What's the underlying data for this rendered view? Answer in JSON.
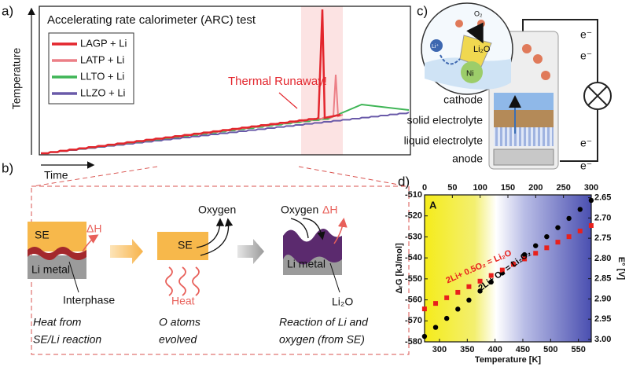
{
  "panel_a": {
    "label": "a)",
    "title": "Accelerating rate calorimeter (ARC) test",
    "y_label": "Temperature",
    "x_label": "Time",
    "legend": [
      {
        "name": "LAGP + Li",
        "color": "#e3262d"
      },
      {
        "name": "LATP + Li",
        "color": "#ec7f86"
      },
      {
        "name": "LLTO + Li",
        "color": "#3fb556"
      },
      {
        "name": "LLZO + Li",
        "color": "#6a5aa9"
      }
    ],
    "annotation": "Thermal Runaway!"
  },
  "panel_b": {
    "label": "b)",
    "step1": {
      "se": "SE",
      "heat": "ΔH",
      "metal": "Li metal",
      "interphase": "Interphase",
      "caption": [
        "Heat from",
        "SE/Li reaction"
      ]
    },
    "step2": {
      "se": "SE",
      "gas": "Oxygen",
      "heat": "Heat",
      "caption": [
        "O atoms",
        "evolved"
      ]
    },
    "step3": {
      "gas": "Oxygen",
      "heat": "ΔH",
      "metal": "Li metal",
      "product": "Li₂O",
      "caption": [
        "Reaction of Li and",
        "oxygen (from SE)"
      ]
    }
  },
  "panel_c": {
    "label": "c)",
    "layers": [
      "cathode",
      "solid electrolyte",
      "liquid electrolyte",
      "anode"
    ],
    "electron": "e⁻",
    "inset": {
      "gas": "O₂",
      "product": "Li₂O",
      "metal": "Ni",
      "ion": "Li⁺"
    }
  },
  "chart_data": {
    "type": "line",
    "label": "d)",
    "inset_label": "A",
    "x_label": "Temperature [K]",
    "y_label": "ΔᵣG [kJ/mol]",
    "y2_label": "E° [V]",
    "x": [
      273,
      293,
      313,
      333,
      353,
      373,
      393,
      413,
      433,
      453,
      473,
      493,
      513,
      533,
      553,
      573
    ],
    "series": [
      {
        "name": "2Li+ O₂ = Li₂O₂",
        "color": "#000000",
        "marker": "circle",
        "values": [
          -577.4,
          -573.1,
          -568.8,
          -564.4,
          -560.1,
          -555.8,
          -551.5,
          -547.2,
          -542.8,
          -538.5,
          -534.2,
          -529.9,
          -525.6,
          -521.2,
          -516.9,
          -512.6
        ]
      },
      {
        "name": "2Li+ 0.5O₂ = Li₂O",
        "color": "#e8201c",
        "marker": "square",
        "values": [
          -564.3,
          -561.7,
          -559.0,
          -556.4,
          -553.7,
          -551.1,
          -548.4,
          -545.8,
          -543.1,
          -540.5,
          -537.8,
          -535.2,
          -532.5,
          -529.9,
          -527.2,
          -524.6
        ]
      }
    ],
    "xlim": [
      273.15,
      573.15
    ],
    "xticks": [
      300,
      350,
      400,
      450,
      500,
      550
    ],
    "x2lim": [
      0,
      300
    ],
    "x2ticks": [
      0,
      50,
      100,
      150,
      200,
      250,
      300
    ],
    "ylim": [
      -580,
      -510
    ],
    "yticks": [
      -580,
      -570,
      -560,
      -550,
      -540,
      -530,
      -520,
      -510
    ],
    "y2lim": [
      3.006,
      2.643
    ],
    "y2ticks": [
      2.65,
      {
        "value": 2.7,
        "label": "2.70"
      },
      2.75,
      {
        "value": 2.8,
        "label": "2.80"
      },
      2.85,
      {
        "value": 2.9,
        "label": "2.90"
      },
      2.95,
      {
        "value": 3,
        "label": "3.00"
      }
    ]
  }
}
